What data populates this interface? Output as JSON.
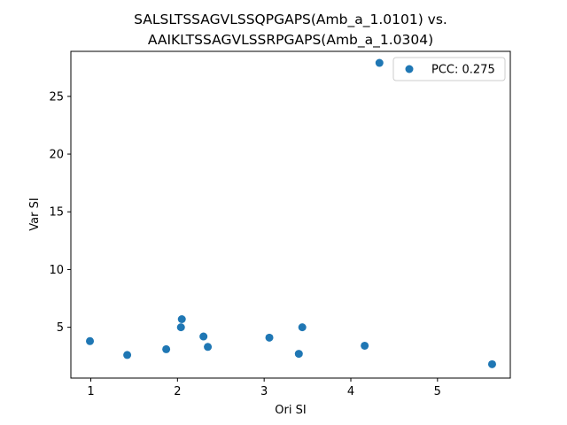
{
  "chart_data": {
    "type": "scatter",
    "title": [
      "SALSLTSSAGVLSSQPGAPS(Amb_a_1.0101) vs.",
      "AAIKLTSSAGVLSSRPGAPS(Amb_a_1.0304)"
    ],
    "xlabel": "Ori SI",
    "ylabel": "Var SI",
    "xlim": [
      0.77,
      5.84
    ],
    "ylim": [
      0.6,
      28.9
    ],
    "xticks": [
      1,
      2,
      3,
      4,
      5
    ],
    "yticks": [
      5,
      10,
      15,
      20,
      25
    ],
    "grid": false,
    "legend_position": "top-right",
    "color": "#1f77b4",
    "series": [
      {
        "name": "PCC: 0.275",
        "points": [
          {
            "x": 0.99,
            "y": 3.8
          },
          {
            "x": 1.42,
            "y": 2.6
          },
          {
            "x": 1.87,
            "y": 3.1
          },
          {
            "x": 2.04,
            "y": 5.0
          },
          {
            "x": 2.05,
            "y": 5.7
          },
          {
            "x": 2.3,
            "y": 4.2
          },
          {
            "x": 2.35,
            "y": 3.3
          },
          {
            "x": 3.06,
            "y": 4.1
          },
          {
            "x": 3.4,
            "y": 2.7
          },
          {
            "x": 3.44,
            "y": 5.0
          },
          {
            "x": 4.16,
            "y": 3.4
          },
          {
            "x": 4.33,
            "y": 27.9
          },
          {
            "x": 5.63,
            "y": 1.8
          }
        ]
      }
    ]
  }
}
